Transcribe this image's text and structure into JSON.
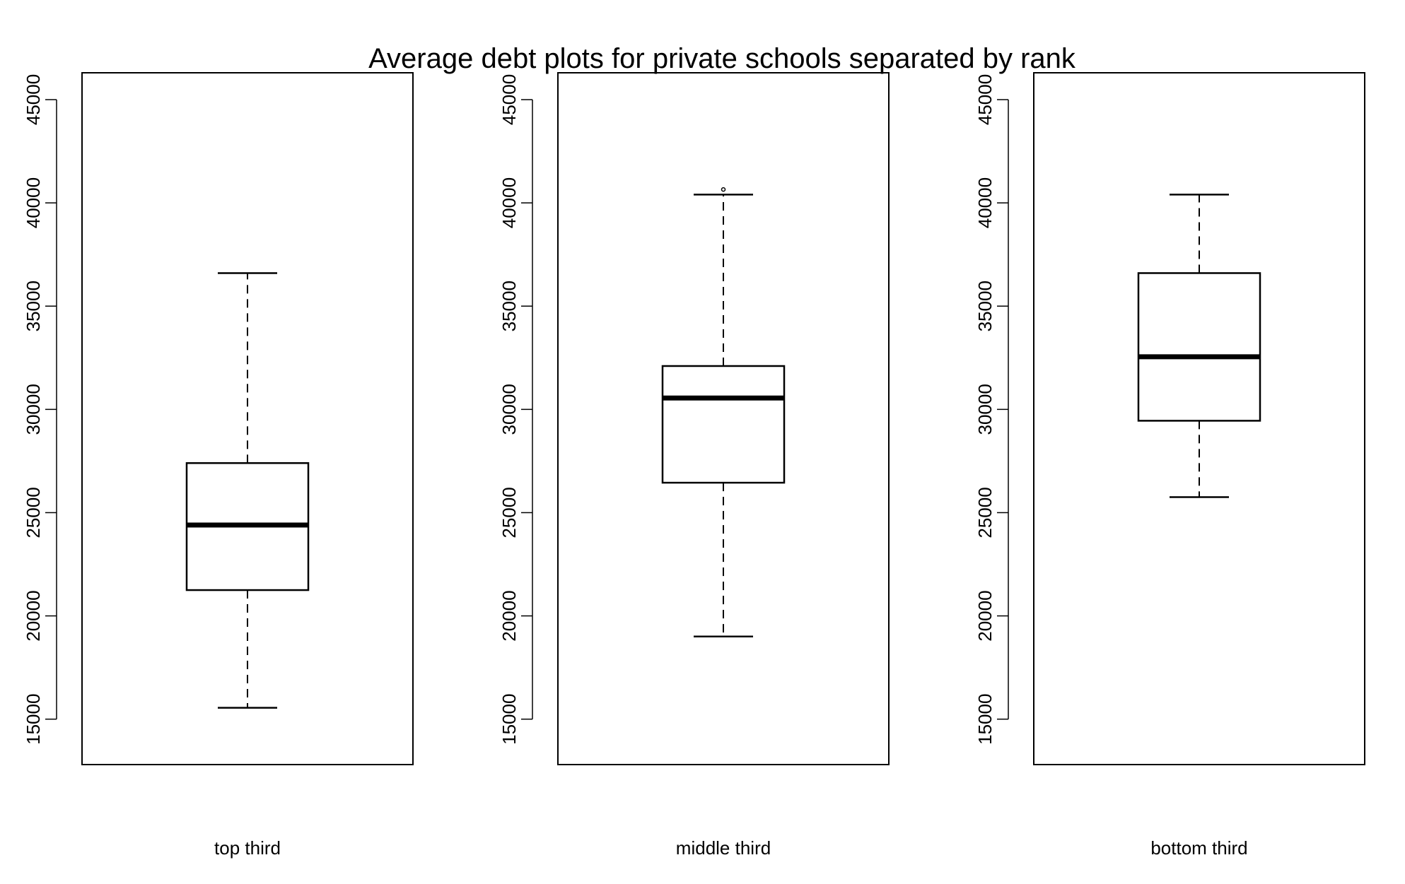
{
  "chart_data": {
    "type": "boxplot",
    "title": "Average debt plots for private schools separated by rank",
    "ylim": [
      12800,
      46300
    ],
    "yticks": [
      15000,
      20000,
      25000,
      30000,
      35000,
      40000,
      45000
    ],
    "yticklabels": [
      "15000",
      "20000",
      "25000",
      "30000",
      "35000",
      "40000",
      "45000"
    ],
    "grid": false,
    "panels": [
      {
        "label": "top third",
        "whisker_low": 15550,
        "q1": 21250,
        "median": 24400,
        "q3": 27400,
        "whisker_high": 36600,
        "outliers": []
      },
      {
        "label": "middle third",
        "whisker_low": 19000,
        "q1": 26450,
        "median": 30550,
        "q3": 32100,
        "whisker_high": 40400,
        "outliers": [
          40650
        ]
      },
      {
        "label": "bottom third",
        "whisker_low": 25750,
        "q1": 29450,
        "median": 32550,
        "q3": 36600,
        "whisker_high": 40400,
        "outliers": []
      }
    ]
  }
}
